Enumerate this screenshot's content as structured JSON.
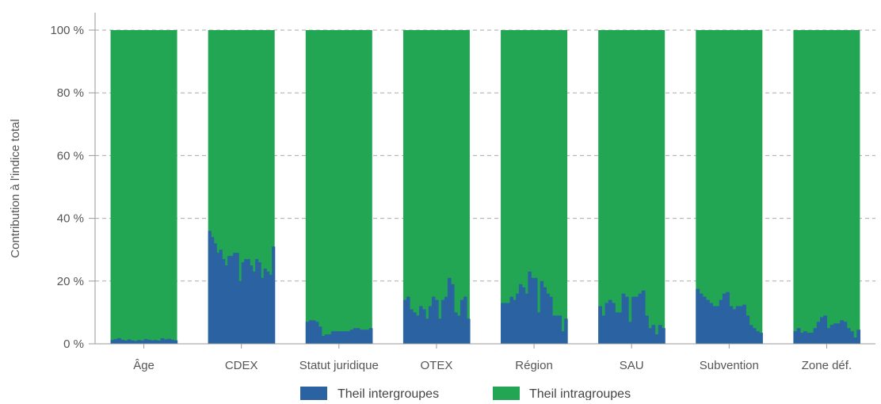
{
  "chart_data": {
    "type": "bar",
    "stacked": true,
    "title": "",
    "xlabel": "",
    "ylabel": "Contribution à l'indice total",
    "ylim": [
      0,
      100
    ],
    "yticks": [
      {
        "value": 0,
        "label": "0 %"
      },
      {
        "value": 20,
        "label": "20 %"
      },
      {
        "value": 40,
        "label": "40 %"
      },
      {
        "value": 60,
        "label": "60 %"
      },
      {
        "value": 80,
        "label": "80 %"
      },
      {
        "value": 100,
        "label": "100 %"
      }
    ],
    "grid": "horizontal-dashed",
    "legend_position": "bottom",
    "colors": {
      "intergroupes": "#2b62a1",
      "intragroupes": "#22a654"
    },
    "series": [
      {
        "name": "Theil intergroupes",
        "key": "intergroupes"
      },
      {
        "name": "Theil intragroupes",
        "key": "intragroupes"
      }
    ],
    "categories": [
      "Âge",
      "CDEX",
      "Statut juridique",
      "OTEX",
      "Région",
      "SAU",
      "Subvention",
      "Zone déf."
    ],
    "intergroupes": [
      [
        1.2,
        1.5,
        1.8,
        1.3,
        1.0,
        1.4,
        1.1,
        0.9,
        1.2,
        1.0,
        1.5,
        1.3,
        1.1,
        1.2,
        1.0,
        1.8,
        1.4,
        1.6,
        1.3,
        1.1
      ],
      [
        36,
        34,
        32,
        29,
        30,
        27,
        25,
        28,
        28,
        29,
        29,
        20,
        26,
        27,
        27,
        25,
        23,
        27,
        26,
        21,
        24,
        23,
        22,
        31
      ],
      [
        7,
        7.5,
        7.5,
        7,
        5.5,
        2.5,
        3,
        3,
        4,
        4,
        4,
        4,
        4,
        4,
        4.5,
        5,
        5,
        4.5,
        4.5,
        4.5,
        5
      ],
      [
        14,
        15,
        11,
        10,
        9,
        12,
        11,
        8,
        12,
        15,
        14,
        8,
        14,
        15,
        21,
        19,
        10,
        9,
        14,
        15,
        8
      ],
      [
        13,
        13,
        13,
        15,
        14,
        16,
        19,
        18,
        16,
        23,
        21,
        21,
        10,
        20,
        18,
        16,
        15,
        9,
        9,
        9,
        4,
        8
      ],
      [
        12,
        9,
        13,
        14,
        13,
        10,
        10,
        16,
        15,
        7,
        15,
        15,
        16,
        17,
        9,
        5,
        6,
        3,
        6,
        5
      ],
      [
        17.5,
        16,
        15,
        14,
        13,
        12,
        12,
        14,
        16,
        16.5,
        12,
        11,
        12,
        12,
        12.5,
        9,
        6,
        5,
        4,
        3.5
      ],
      [
        4,
        5,
        3.5,
        4,
        3.5,
        3.5,
        5,
        7,
        8.5,
        9,
        5,
        6,
        6.5,
        6.5,
        7.5,
        7,
        5,
        4,
        2,
        4.5
      ]
    ]
  },
  "legend": {
    "intergroupes_label": "Theil intergroupes",
    "intragroupes_label": "Theil intragroupes"
  }
}
